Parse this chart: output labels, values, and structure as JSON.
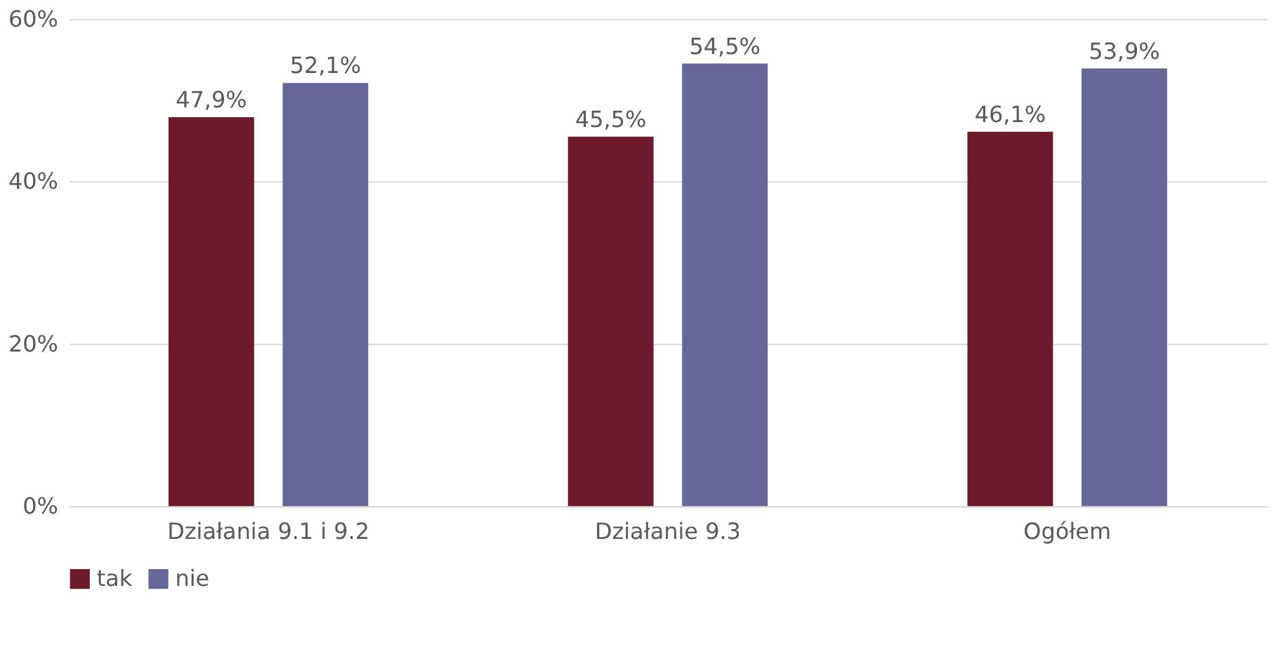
{
  "chart_data": {
    "type": "bar",
    "categories": [
      "Działania 9.1 i 9.2",
      "Działanie 9.3",
      "Ogółem"
    ],
    "series": [
      {
        "name": "tak",
        "color": "#6d1a2b",
        "values": [
          47.9,
          45.5,
          46.1
        ],
        "value_labels": [
          "47,9%",
          "45,5%",
          "46,1%"
        ]
      },
      {
        "name": "nie",
        "color": "#666699",
        "values": [
          52.1,
          54.5,
          53.9
        ],
        "value_labels": [
          "52,1%",
          "54,5%",
          "53,9%"
        ]
      }
    ],
    "ylim": [
      0,
      60
    ],
    "yticks": [
      {
        "value": 0,
        "label": "0%"
      },
      {
        "value": 20,
        "label": "20%"
      },
      {
        "value": 40,
        "label": "40%"
      },
      {
        "value": 60,
        "label": "60%"
      }
    ],
    "grid": "y",
    "legend": "bottom"
  }
}
